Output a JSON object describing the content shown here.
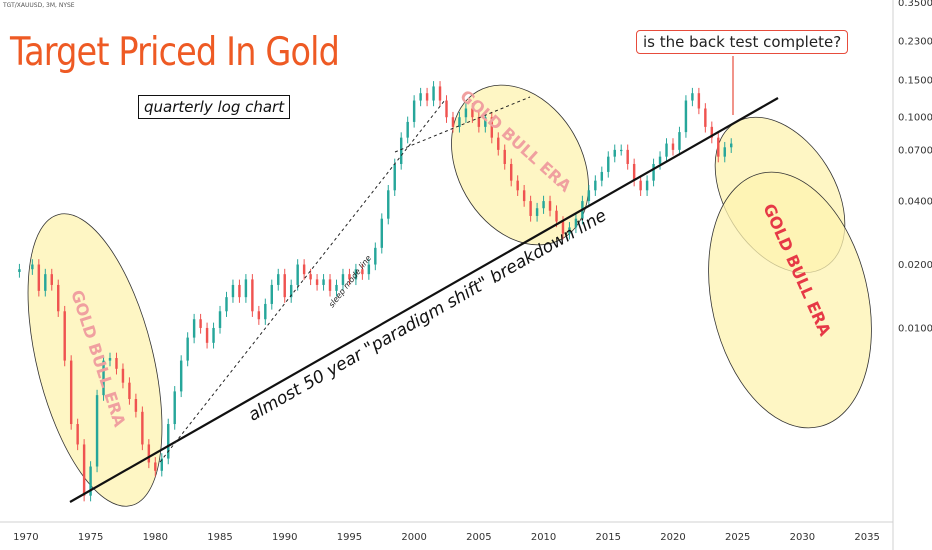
{
  "symbol_label": "TGT/XAUUSD, 3M, NYSE",
  "title": "Target Priced In Gold",
  "subtitle": "quarterly log chart",
  "callout": "is the back test complete?",
  "annotations": {
    "trendline_label": "almost 50 year \"paradigm shift\" breakdown line",
    "sleep_mode": "sleep mode line",
    "era_label": "GOLD BULL ERA"
  },
  "colors": {
    "up": "#26a69a",
    "down": "#ef5350",
    "title": "#ee5a24",
    "ellipse_fill": "#fdf3b0",
    "era_text_faded": "#f0a0a0",
    "era_text_strong": "#e63946"
  },
  "chart_data": {
    "type": "candlestick",
    "scale": "log",
    "frequency": "quarterly",
    "x_ticks": [
      "1970",
      "1975",
      "1980",
      "1985",
      "1990",
      "1995",
      "2000",
      "2005",
      "2010",
      "2015",
      "2020",
      "2025",
      "2030",
      "2035"
    ],
    "y_ticks": [
      "0.3500",
      "0.2300",
      "0.1500",
      "0.1000",
      "0.0700",
      "0.0400",
      "0.0200",
      "0.0100"
    ],
    "xlim": [
      1968,
      2037
    ],
    "ylim_log": [
      0.0012,
      0.36
    ],
    "series": [
      [
        1969.5,
        0.019
      ],
      [
        1970.5,
        0.02
      ],
      [
        1971.0,
        0.015
      ],
      [
        1971.5,
        0.018
      ],
      [
        1972.0,
        0.016
      ],
      [
        1972.5,
        0.012
      ],
      [
        1973.0,
        0.007
      ],
      [
        1973.5,
        0.0035
      ],
      [
        1974.0,
        0.0028
      ],
      [
        1974.5,
        0.0016
      ],
      [
        1975.0,
        0.0022
      ],
      [
        1975.5,
        0.0048
      ],
      [
        1976.0,
        0.007
      ],
      [
        1976.5,
        0.0072
      ],
      [
        1977.0,
        0.0064
      ],
      [
        1977.5,
        0.0055
      ],
      [
        1978.0,
        0.0046
      ],
      [
        1978.5,
        0.004
      ],
      [
        1979.0,
        0.0028
      ],
      [
        1979.5,
        0.0023
      ],
      [
        1980.0,
        0.0021
      ],
      [
        1980.5,
        0.0024
      ],
      [
        1981.0,
        0.0035
      ],
      [
        1981.5,
        0.005
      ],
      [
        1982.0,
        0.007
      ],
      [
        1982.5,
        0.009
      ],
      [
        1983.0,
        0.011
      ],
      [
        1983.5,
        0.01
      ],
      [
        1984.0,
        0.0085
      ],
      [
        1984.5,
        0.01
      ],
      [
        1985.0,
        0.012
      ],
      [
        1985.5,
        0.014
      ],
      [
        1986.0,
        0.016
      ],
      [
        1986.5,
        0.014
      ],
      [
        1987.0,
        0.017
      ],
      [
        1987.5,
        0.012
      ],
      [
        1988.0,
        0.011
      ],
      [
        1988.5,
        0.013
      ],
      [
        1989.0,
        0.016
      ],
      [
        1989.5,
        0.018
      ],
      [
        1990.0,
        0.014
      ],
      [
        1990.5,
        0.016
      ],
      [
        1991.0,
        0.02
      ],
      [
        1991.5,
        0.018
      ],
      [
        1992.0,
        0.017
      ],
      [
        1992.5,
        0.016
      ],
      [
        1993.0,
        0.017
      ],
      [
        1993.5,
        0.015
      ],
      [
        1994.0,
        0.016
      ],
      [
        1994.5,
        0.018
      ],
      [
        1995.0,
        0.017
      ],
      [
        1995.5,
        0.019
      ],
      [
        1996.0,
        0.018
      ],
      [
        1996.5,
        0.02
      ],
      [
        1997.0,
        0.024
      ],
      [
        1997.5,
        0.033
      ],
      [
        1998.0,
        0.045
      ],
      [
        1998.5,
        0.06
      ],
      [
        1999.0,
        0.08
      ],
      [
        1999.5,
        0.095
      ],
      [
        2000.0,
        0.12
      ],
      [
        2000.5,
        0.13
      ],
      [
        2001.0,
        0.12
      ],
      [
        2001.5,
        0.14
      ],
      [
        2002.0,
        0.12
      ],
      [
        2002.5,
        0.1
      ],
      [
        2003.0,
        0.09
      ],
      [
        2003.5,
        0.1
      ],
      [
        2004.0,
        0.11
      ],
      [
        2004.5,
        0.1
      ],
      [
        2005.0,
        0.09
      ],
      [
        2005.5,
        0.1
      ],
      [
        2006.0,
        0.08
      ],
      [
        2006.5,
        0.07
      ],
      [
        2007.0,
        0.06
      ],
      [
        2007.5,
        0.05
      ],
      [
        2008.0,
        0.045
      ],
      [
        2008.5,
        0.04
      ],
      [
        2009.0,
        0.034
      ],
      [
        2009.5,
        0.037
      ],
      [
        2010.0,
        0.04
      ],
      [
        2010.5,
        0.036
      ],
      [
        2011.0,
        0.032
      ],
      [
        2011.5,
        0.028
      ],
      [
        2012.0,
        0.03
      ],
      [
        2012.5,
        0.033
      ],
      [
        2013.0,
        0.04
      ],
      [
        2013.5,
        0.045
      ],
      [
        2014.0,
        0.05
      ],
      [
        2014.5,
        0.055
      ],
      [
        2015.0,
        0.065
      ],
      [
        2015.5,
        0.07
      ],
      [
        2016.0,
        0.07
      ],
      [
        2016.5,
        0.06
      ],
      [
        2017.0,
        0.05
      ],
      [
        2017.5,
        0.045
      ],
      [
        2018.0,
        0.05
      ],
      [
        2018.5,
        0.06
      ],
      [
        2019.0,
        0.065
      ],
      [
        2019.5,
        0.075
      ],
      [
        2020.0,
        0.07
      ],
      [
        2020.5,
        0.085
      ],
      [
        2021.0,
        0.12
      ],
      [
        2021.5,
        0.13
      ],
      [
        2022.0,
        0.11
      ],
      [
        2022.5,
        0.09
      ],
      [
        2023.0,
        0.08
      ],
      [
        2023.5,
        0.065
      ],
      [
        2024.0,
        0.072
      ],
      [
        2024.5,
        0.075
      ]
    ]
  }
}
